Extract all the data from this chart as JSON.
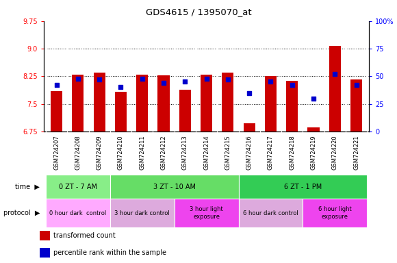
{
  "title": "GDS4615 / 1395070_at",
  "categories": [
    "GSM724207",
    "GSM724208",
    "GSM724209",
    "GSM724210",
    "GSM724211",
    "GSM724212",
    "GSM724213",
    "GSM724214",
    "GSM724215",
    "GSM724216",
    "GSM724217",
    "GSM724218",
    "GSM724219",
    "GSM724220",
    "GSM724221"
  ],
  "red_values": [
    7.85,
    8.3,
    8.35,
    7.83,
    8.3,
    8.27,
    7.88,
    8.3,
    8.35,
    6.97,
    8.25,
    8.13,
    6.87,
    9.08,
    8.17
  ],
  "blue_values": [
    42,
    48,
    47,
    40,
    48,
    44,
    45,
    48,
    47,
    35,
    45,
    42,
    30,
    52,
    42
  ],
  "ylim_left": [
    6.75,
    9.75
  ],
  "ylim_right": [
    0,
    100
  ],
  "yticks_left": [
    6.75,
    7.5,
    8.25,
    9.0,
    9.75
  ],
  "yticks_right": [
    0,
    25,
    50,
    75,
    100
  ],
  "bar_color": "#cc0000",
  "dot_color": "#0000cc",
  "time_groups": [
    {
      "label": "0 ZT - 7 AM",
      "start": 0,
      "end": 2,
      "color": "#88ee88"
    },
    {
      "label": "3 ZT - 10 AM",
      "start": 3,
      "end": 8,
      "color": "#66dd66"
    },
    {
      "label": "6 ZT - 1 PM",
      "start": 9,
      "end": 14,
      "color": "#33cc55"
    }
  ],
  "protocol_groups": [
    {
      "label": "0 hour dark  control",
      "start": 0,
      "end": 2,
      "color": "#ffaaff"
    },
    {
      "label": "3 hour dark control",
      "start": 3,
      "end": 5,
      "color": "#ddaadd"
    },
    {
      "label": "3 hour light\nexposure",
      "start": 6,
      "end": 8,
      "color": "#ee44ee"
    },
    {
      "label": "6 hour dark control",
      "start": 9,
      "end": 11,
      "color": "#ddaadd"
    },
    {
      "label": "6 hour light\nexposure",
      "start": 12,
      "end": 14,
      "color": "#ee44ee"
    }
  ],
  "legend_items": [
    {
      "label": "transformed count",
      "color": "#cc0000"
    },
    {
      "label": "percentile rank within the sample",
      "color": "#0000cc"
    }
  ],
  "chart_bg": "#ffffff",
  "xtick_bg": "#dddddd"
}
